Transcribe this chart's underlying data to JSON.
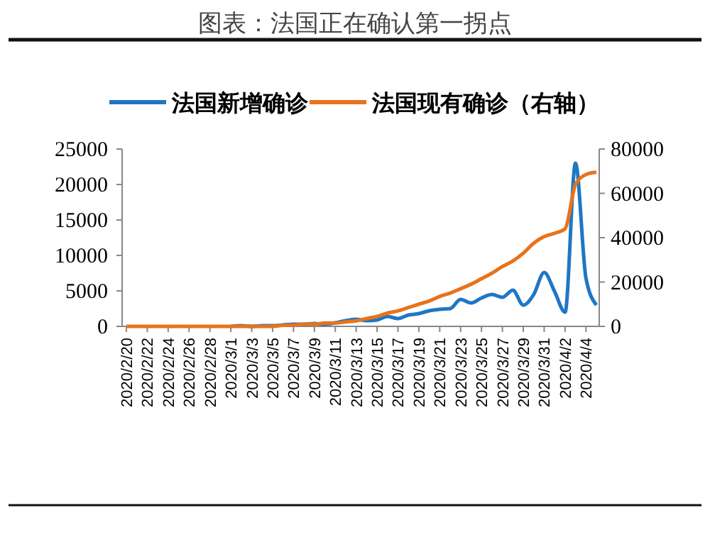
{
  "chart_data": {
    "type": "line",
    "title": "图表：法国正在确认第一拐点",
    "categories": [
      "2020/2/20",
      null,
      "2020/2/22",
      null,
      "2020/2/24",
      null,
      "2020/2/26",
      null,
      "2020/2/28",
      null,
      "2020/3/1",
      null,
      "2020/3/3",
      null,
      "2020/3/5",
      null,
      "2020/3/7",
      null,
      "2020/3/9",
      null,
      "2020/3/11",
      null,
      "2020/3/13",
      null,
      "2020/3/15",
      null,
      "2020/3/17",
      null,
      "2020/3/19",
      null,
      "2020/3/21",
      null,
      "2020/3/23",
      null,
      "2020/3/25",
      null,
      "2020/3/27",
      null,
      "2020/3/29",
      null,
      "2020/3/31",
      null,
      "2020/4/2",
      null,
      "2020/4/4",
      null
    ],
    "series": [
      {
        "name": "法国新增确诊",
        "color": "#1f77c4",
        "values": [
          null,
          null,
          null,
          null,
          null,
          null,
          null,
          null,
          null,
          null,
          0,
          100,
          0,
          100,
          100,
          200,
          300,
          300,
          400,
          300,
          500,
          800,
          1000,
          800,
          900,
          1400,
          1100,
          1600,
          1800,
          2200,
          2400,
          2500,
          3800,
          3300,
          4000,
          4500,
          4100,
          5100,
          3000,
          4500,
          7600,
          4900,
          2000,
          23000,
          6800,
          3000
        ]
      },
      {
        "name": "法国现有确诊（右轴）",
        "color": "#e8731c",
        "axis": "y2",
        "values": [
          0,
          0,
          0,
          0,
          0,
          0,
          0,
          0,
          0,
          0,
          0,
          0,
          0,
          0,
          0,
          500,
          500,
          1000,
          1000,
          1500,
          1500,
          2000,
          2500,
          3500,
          4500,
          6000,
          7000,
          8500,
          10000,
          11500,
          13500,
          15000,
          17000,
          19000,
          21500,
          24000,
          27000,
          29500,
          33000,
          37500,
          40500,
          42000,
          44000,
          64000,
          68500,
          69500
        ]
      }
    ],
    "ylim": [
      0,
      25000
    ],
    "yticks": [
      0,
      5000,
      10000,
      15000,
      20000,
      25000
    ],
    "y2lim": [
      0,
      80000
    ],
    "y2ticks": [
      0,
      20000,
      40000,
      60000,
      80000
    ],
    "legend": "top",
    "grid": false
  }
}
